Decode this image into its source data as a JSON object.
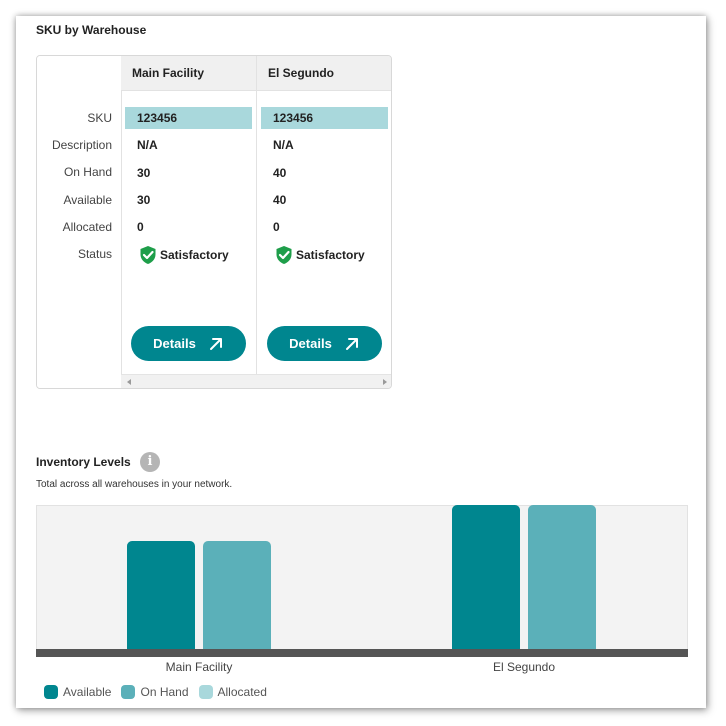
{
  "sku_section": {
    "title": "SKU by Warehouse",
    "row_labels": [
      "SKU",
      "Description",
      "On Hand",
      "Available",
      "Allocated",
      "Status"
    ],
    "warehouses": [
      {
        "name": "Main Facility",
        "sku": "123456",
        "description": "N/A",
        "on_hand": "30",
        "available": "30",
        "allocated": "0",
        "status": "Satisfactory",
        "details_label": "Details"
      },
      {
        "name": "El Segundo",
        "sku": "123456",
        "description": "N/A",
        "on_hand": "40",
        "available": "40",
        "allocated": "0",
        "status": "Satisfactory",
        "details_label": "Details"
      }
    ]
  },
  "inventory": {
    "title": "Inventory Levels",
    "info_icon": "info-icon",
    "subtitle": "Total across all warehouses in your network."
  },
  "colors": {
    "available": "#00868f",
    "on_hand": "#5bb0b9",
    "allocated": "#a9d8dc",
    "status_ok": "#1e9e4a"
  },
  "chart_data": {
    "type": "bar",
    "categories": [
      "Main Facility",
      "El Segundo"
    ],
    "series": [
      {
        "name": "Available",
        "values": [
          30,
          40
        ]
      },
      {
        "name": "On Hand",
        "values": [
          30,
          40
        ]
      },
      {
        "name": "Allocated",
        "values": [
          0,
          0
        ]
      }
    ],
    "ylim": [
      0,
      40
    ],
    "grid": false,
    "legend": "bottom-left"
  }
}
